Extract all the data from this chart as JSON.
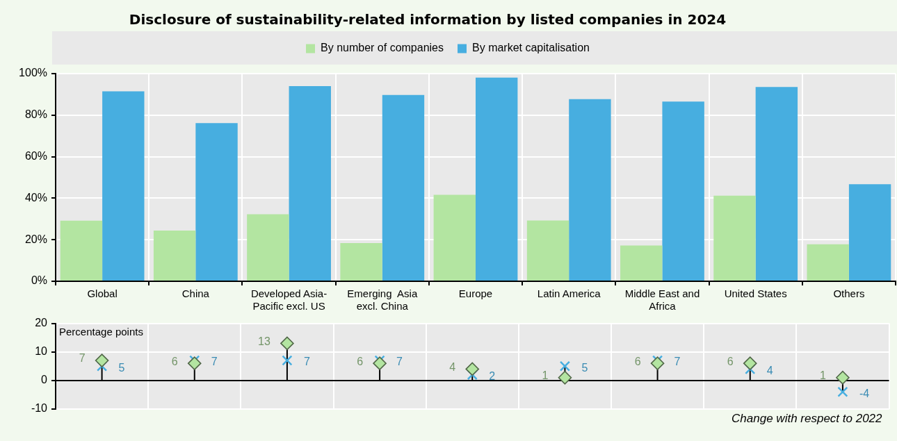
{
  "chart_data": [
    {
      "type": "bar",
      "title": "Disclosure of sustainability-related information by listed companies in 2024",
      "categories": [
        "Global",
        "China",
        "Developed Asia-Pacific excl. US",
        "Emerging  Asia excl. China",
        "Europe",
        "Latin America",
        "Middle East and Africa",
        "United States",
        "Others"
      ],
      "series": [
        {
          "name": "By number of companies",
          "color": "#b3e5a1",
          "values": [
            29.2,
            24.4,
            32.3,
            18.4,
            41.6,
            29.3,
            17.2,
            41.2,
            17.8
          ]
        },
        {
          "name": "By market capitalisation",
          "color": "#47aee0",
          "values": [
            91.5,
            76.2,
            94.0,
            89.7,
            98.1,
            87.7,
            86.5,
            93.6,
            46.7
          ]
        }
      ],
      "ylim": [
        0,
        100
      ],
      "yticks": [
        {
          "value": 0,
          "label": "0%"
        },
        {
          "value": 20,
          "label": "20%"
        },
        {
          "value": 40,
          "label": "40%"
        },
        {
          "value": 60,
          "label": "60%"
        },
        {
          "value": 80,
          "label": "80%"
        },
        {
          "value": 100,
          "label": "100%"
        }
      ],
      "grid": true,
      "legend": "top"
    },
    {
      "type": "scatter",
      "categories": [
        null,
        null,
        null,
        null,
        null,
        null,
        null,
        null,
        null
      ],
      "series": [
        {
          "color": "#b3e5a1",
          "marker": "diamond",
          "values": [
            7,
            6,
            13,
            6,
            4,
            1,
            6,
            6,
            1
          ]
        },
        {
          "color": "#47aee0",
          "marker": "cross",
          "values": [
            5,
            7,
            7,
            7,
            2,
            5,
            7,
            4,
            -4
          ]
        }
      ],
      "ylim": [
        -10,
        20
      ],
      "yticks": [
        -10,
        0,
        10,
        20
      ],
      "grid": true,
      "legend": false,
      "tick_labels": "y",
      "data_labels": true,
      "annotations": [
        "Percentage points",
        "Change with respect to 2022"
      ]
    }
  ]
}
